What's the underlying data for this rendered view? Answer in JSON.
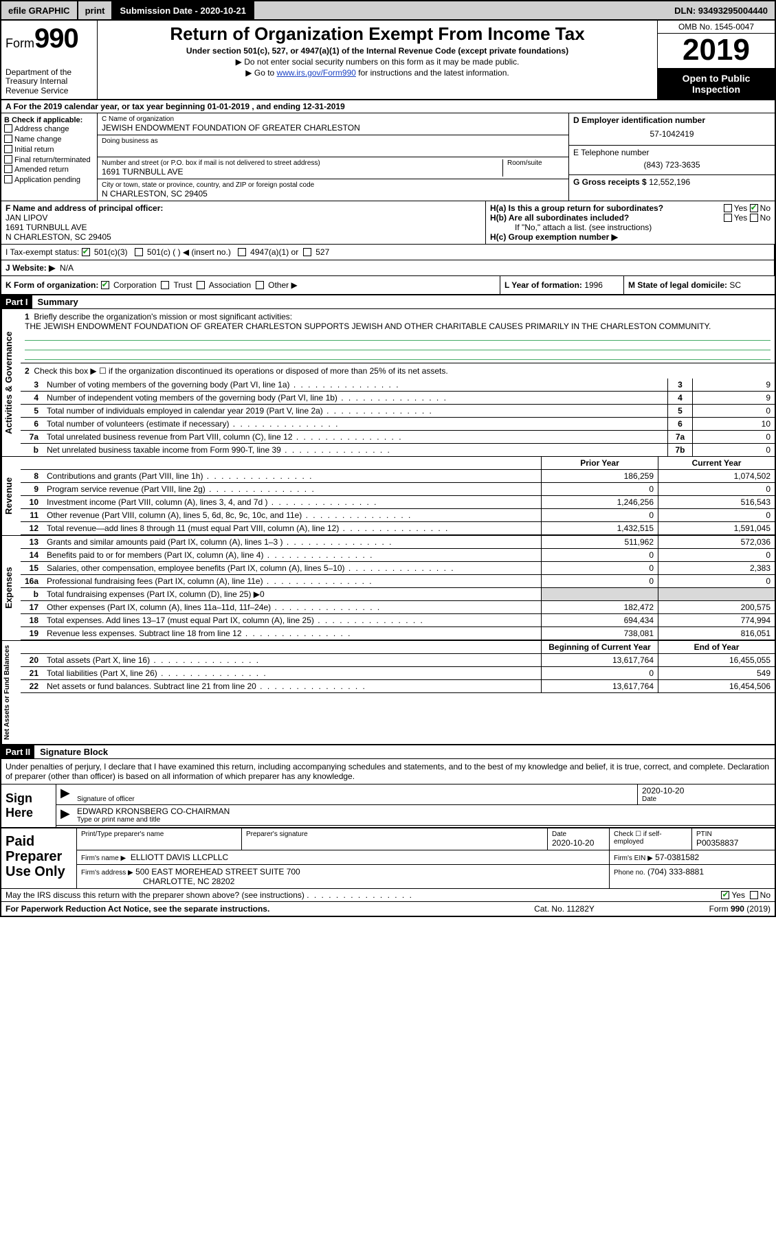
{
  "topbar": {
    "efile": "efile GRAPHIC",
    "print": "print",
    "subdate_label": "Submission Date - 2020-10-21",
    "dln": "DLN: 93493295004440"
  },
  "header": {
    "form_label": "Form",
    "form_num": "990",
    "dept": "Department of the Treasury\nInternal Revenue Service",
    "title": "Return of Organization Exempt From Income Tax",
    "sub": "Under section 501(c), 527, or 4947(a)(1) of the Internal Revenue Code (except private foundations)",
    "arrow1": "▶ Do not enter social security numbers on this form as it may be made public.",
    "arrow2_pre": "▶ Go to ",
    "arrow2_link": "www.irs.gov/Form990",
    "arrow2_post": " for instructions and the latest information.",
    "omb": "OMB No. 1545-0047",
    "year": "2019",
    "inspect": "Open to Public Inspection"
  },
  "rowA": "A For the 2019 calendar year, or tax year beginning 01-01-2019   , and ending 12-31-2019",
  "colB": {
    "hd": "B Check if applicable:",
    "items": [
      "Address change",
      "Name change",
      "Initial return",
      "Final return/terminated",
      "Amended return",
      "Application pending"
    ]
  },
  "colC": {
    "name_lab": "C Name of organization",
    "name": "JEWISH ENDOWMENT FOUNDATION OF GREATER CHARLESTON",
    "dba_lab": "Doing business as",
    "addr_lab": "Number and street (or P.O. box if mail is not delivered to street address)",
    "room_lab": "Room/suite",
    "addr": "1691 TURNBULL AVE",
    "city_lab": "City or town, state or province, country, and ZIP or foreign postal code",
    "city": "N CHARLESTON, SC  29405"
  },
  "colD": {
    "ein_lab": "D Employer identification number",
    "ein": "57-1042419",
    "tel_lab": "E Telephone number",
    "tel": "(843) 723-3635",
    "gross_lab": "G Gross receipts $",
    "gross": "12,552,196"
  },
  "rowF": {
    "lab": "F  Name and address of principal officer:",
    "name": "JAN LIPOV",
    "addr1": "1691 TURNBULL AVE",
    "addr2": "N CHARLESTON, SC  29405"
  },
  "rowH": {
    "ha": "H(a)  Is this a group return for subordinates?",
    "ha_yes": "Yes",
    "ha_no": "No",
    "hb": "H(b)  Are all subordinates included?",
    "hb_yes": "Yes",
    "hb_no": "No",
    "hb_note": "If \"No,\" attach a list. (see instructions)",
    "hc": "H(c)  Group exemption number ▶"
  },
  "rowI": {
    "lab": "I   Tax-exempt status:",
    "c3": "501(c)(3)",
    "c": "501(c) (  ) ◀ (insert no.)",
    "a1": "4947(a)(1) or",
    "s527": "527"
  },
  "rowJ": {
    "lab": "J   Website: ▶",
    "val": "N/A"
  },
  "rowK": {
    "k1": "K Form of organization:",
    "corp": "Corporation",
    "trust": "Trust",
    "assoc": "Association",
    "other": "Other ▶",
    "k2_lab": "L Year of formation:",
    "k2_val": "1996",
    "k3_lab": "M State of legal domicile:",
    "k3_val": "SC"
  },
  "part1": {
    "hdr": "Part I",
    "title": "Summary",
    "side_ag": "Activities & Governance",
    "side_rev": "Revenue",
    "side_exp": "Expenses",
    "side_net": "Net Assets or Fund Balances",
    "l1_lab": "Briefly describe the organization's mission or most significant activities:",
    "l1_text": "THE JEWISH ENDOWMENT FOUNDATION OF GREATER CHARLESTON SUPPORTS JEWISH AND OTHER CHARITABLE CAUSES PRIMARILY IN THE CHARLESTON COMMUNITY.",
    "l2": "Check this box ▶ ☐  if the organization discontinued its operations or disposed of more than 25% of its net assets.",
    "lines_ag": [
      {
        "n": "3",
        "t": "Number of voting members of the governing body (Part VI, line 1a)",
        "box": "3",
        "v": "9"
      },
      {
        "n": "4",
        "t": "Number of independent voting members of the governing body (Part VI, line 1b)",
        "box": "4",
        "v": "9"
      },
      {
        "n": "5",
        "t": "Total number of individuals employed in calendar year 2019 (Part V, line 2a)",
        "box": "5",
        "v": "0"
      },
      {
        "n": "6",
        "t": "Total number of volunteers (estimate if necessary)",
        "box": "6",
        "v": "10"
      },
      {
        "n": "7a",
        "t": "Total unrelated business revenue from Part VIII, column (C), line 12",
        "box": "7a",
        "v": "0"
      },
      {
        "n": "b",
        "t": "Net unrelated business taxable income from Form 990-T, line 39",
        "box": "7b",
        "v": "0"
      }
    ],
    "col_prior": "Prior Year",
    "col_curr": "Current Year",
    "rev": [
      {
        "n": "8",
        "t": "Contributions and grants (Part VIII, line 1h)",
        "a": "186,259",
        "b": "1,074,502"
      },
      {
        "n": "9",
        "t": "Program service revenue (Part VIII, line 2g)",
        "a": "0",
        "b": "0"
      },
      {
        "n": "10",
        "t": "Investment income (Part VIII, column (A), lines 3, 4, and 7d )",
        "a": "1,246,256",
        "b": "516,543"
      },
      {
        "n": "11",
        "t": "Other revenue (Part VIII, column (A), lines 5, 6d, 8c, 9c, 10c, and 11e)",
        "a": "0",
        "b": "0"
      },
      {
        "n": "12",
        "t": "Total revenue—add lines 8 through 11 (must equal Part VIII, column (A), line 12)",
        "a": "1,432,515",
        "b": "1,591,045"
      }
    ],
    "exp": [
      {
        "n": "13",
        "t": "Grants and similar amounts paid (Part IX, column (A), lines 1–3 )",
        "a": "511,962",
        "b": "572,036"
      },
      {
        "n": "14",
        "t": "Benefits paid to or for members (Part IX, column (A), line 4)",
        "a": "0",
        "b": "0"
      },
      {
        "n": "15",
        "t": "Salaries, other compensation, employee benefits (Part IX, column (A), lines 5–10)",
        "a": "0",
        "b": "2,383"
      },
      {
        "n": "16a",
        "t": "Professional fundraising fees (Part IX, column (A), line 11e)",
        "a": "0",
        "b": "0"
      },
      {
        "n": "b",
        "t": "Total fundraising expenses (Part IX, column (D), line 25) ▶0",
        "a": "",
        "b": "",
        "shadeA": true,
        "shadeB": true
      },
      {
        "n": "17",
        "t": "Other expenses (Part IX, column (A), lines 11a–11d, 11f–24e)",
        "a": "182,472",
        "b": "200,575"
      },
      {
        "n": "18",
        "t": "Total expenses. Add lines 13–17 (must equal Part IX, column (A), line 25)",
        "a": "694,434",
        "b": "774,994"
      },
      {
        "n": "19",
        "t": "Revenue less expenses. Subtract line 18 from line 12",
        "a": "738,081",
        "b": "816,051"
      }
    ],
    "net_hdr_a": "Beginning of Current Year",
    "net_hdr_b": "End of Year",
    "net": [
      {
        "n": "20",
        "t": "Total assets (Part X, line 16)",
        "a": "13,617,764",
        "b": "16,455,055"
      },
      {
        "n": "21",
        "t": "Total liabilities (Part X, line 26)",
        "a": "0",
        "b": "549"
      },
      {
        "n": "22",
        "t": "Net assets or fund balances. Subtract line 21 from line 20",
        "a": "13,617,764",
        "b": "16,454,506"
      }
    ]
  },
  "part2": {
    "hdr": "Part II",
    "title": "Signature Block",
    "intro": "Under penalties of perjury, I declare that I have examined this return, including accompanying schedules and statements, and to the best of my knowledge and belief, it is true, correct, and complete. Declaration of preparer (other than officer) is based on all information of which preparer has any knowledge.",
    "sign_here": "Sign Here",
    "sig_lab": "Signature of officer",
    "date_lab": "Date",
    "sig_date": "2020-10-20",
    "name_line": "EDWARD KRONSBERG  CO-CHAIRMAN",
    "name_lab": "Type or print name and title"
  },
  "prep": {
    "lab": "Paid Preparer Use Only",
    "r1": {
      "c1": "Print/Type preparer's name",
      "c2": "Preparer's signature",
      "c3": "Date",
      "c3v": "2020-10-20",
      "c4": "Check ☐ if self-employed",
      "c5": "PTIN",
      "c5v": "P00358837"
    },
    "r2": {
      "c1": "Firm's name    ▶",
      "c1v": "ELLIOTT DAVIS LLCPLLC",
      "c2": "Firm's EIN ▶",
      "c2v": "57-0381582"
    },
    "r3": {
      "c1": "Firm's address ▶",
      "c1v": "500 EAST MOREHEAD STREET SUITE 700",
      "c2": "Phone no.",
      "c2v": "(704) 333-8881"
    },
    "r3b": "CHARLOTTE, NC  28202"
  },
  "may": {
    "text": "May the IRS discuss this return with the preparer shown above? (see instructions)",
    "yes": "Yes",
    "no": "No"
  },
  "footer": {
    "f1": "For Paperwork Reduction Act Notice, see the separate instructions.",
    "f2": "Cat. No. 11282Y",
    "f3": "Form 990 (2019)"
  }
}
